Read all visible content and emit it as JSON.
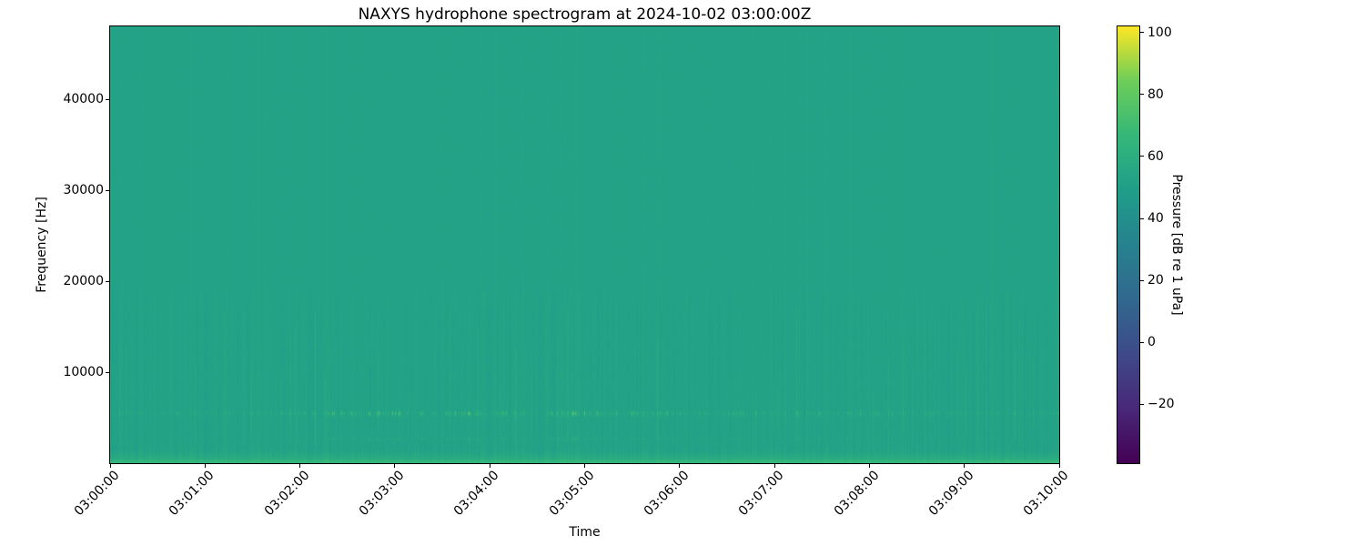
{
  "chart_data": {
    "type": "heatmap",
    "title": "NAXYS hydrophone spectrogram at 2024-10-02 03:00:00Z",
    "xlabel": "Time",
    "ylabel": "Frequency [Hz]",
    "x_tick_labels": [
      "03:00:00",
      "03:01:00",
      "03:02:00",
      "03:03:00",
      "03:04:00",
      "03:05:00",
      "03:06:00",
      "03:07:00",
      "03:08:00",
      "03:09:00",
      "03:10:00"
    ],
    "x_tick_rotation_deg": 45,
    "y_ticks_hz": [
      10000,
      20000,
      30000,
      40000
    ],
    "y_tick_labels": [
      "10000",
      "20000",
      "30000",
      "40000"
    ],
    "freq_range_hz": [
      0,
      48000
    ],
    "grid": false,
    "colorbar": {
      "label": "Pressure [dB re 1 uPa]",
      "tick_values": [
        100,
        80,
        60,
        40,
        20,
        0,
        -20
      ],
      "tick_labels": [
        "100",
        "80",
        "60",
        "40",
        "20",
        "0",
        "−20"
      ],
      "value_range": [
        -39,
        102
      ],
      "colormap": "viridis",
      "position": "right"
    },
    "content_summary": {
      "background_level_db": 52.5,
      "click_band_center_hz": 5500,
      "click_band_peak_db": 82,
      "secondary_band_center_hz": 2700,
      "low_frequency_band_below_hz": 1900,
      "low_frequency_band_level_db": 65,
      "vertical_striation_amplitude_db": 2,
      "texture": "broadband teal-green field with faint vertical transient striations, a horizontal row of bright click speckles near 5.5 kHz, a fainter speckle row near 2.7 kHz, and a brighter green band at the lowest frequencies"
    },
    "viridis_stops": [
      "#440154",
      "#482878",
      "#3e4a89",
      "#31688e",
      "#26828e",
      "#1f9e89",
      "#35b779",
      "#6dcd59",
      "#fde725"
    ]
  }
}
